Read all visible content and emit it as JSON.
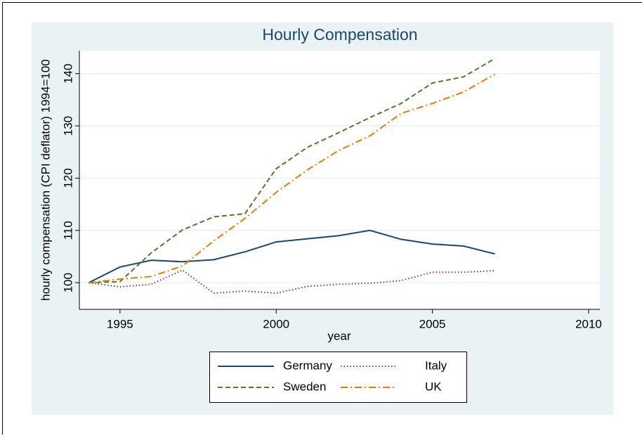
{
  "chart_data": {
    "type": "line",
    "title": "Hourly Compensation",
    "x_label": "year",
    "y_label": "hourly compensation (CPI deflator) 1994=100",
    "x": [
      1994,
      1995,
      1996,
      1997,
      1998,
      1999,
      2000,
      2001,
      2002,
      2003,
      2004,
      2005,
      2006,
      2007
    ],
    "series": [
      {
        "name": "Germany",
        "color": "#1a476f",
        "dash": "solid",
        "values": [
          100,
          103,
          104.3,
          104,
          104.4,
          105.9,
          107.8,
          108.4,
          109,
          110,
          108.3,
          107.4,
          107,
          105.5
        ]
      },
      {
        "name": "Italy",
        "color": "#90353b",
        "dash": "dot",
        "values": [
          100,
          99.2,
          99.7,
          102.4,
          98,
          98.4,
          98,
          99.3,
          99.7,
          99.9,
          100.4,
          102,
          102,
          102.3
        ]
      },
      {
        "name": "Sweden",
        "color": "#55752f",
        "dash": "dash",
        "values": [
          100,
          100.2,
          105.7,
          110.1,
          112.6,
          113.2,
          121.8,
          125.9,
          128.7,
          131.6,
          134.3,
          138.2,
          139.4,
          142.9
        ]
      },
      {
        "name": "UK",
        "color": "#e37e00",
        "dash": "dashdot",
        "values": [
          100,
          100.7,
          101.2,
          103.2,
          108,
          112.3,
          117.3,
          121.6,
          125.3,
          128.1,
          132.4,
          134.3,
          136.5,
          139.9
        ]
      }
    ],
    "xlim": [
      1993.7,
      2010.36
    ],
    "xticks": [
      1995,
      2000,
      2005,
      2010
    ],
    "ylim": [
      94.9,
      144.4
    ],
    "yticks": [
      100,
      110,
      120,
      130,
      140
    ],
    "grid": true,
    "legend": "bottom"
  }
}
